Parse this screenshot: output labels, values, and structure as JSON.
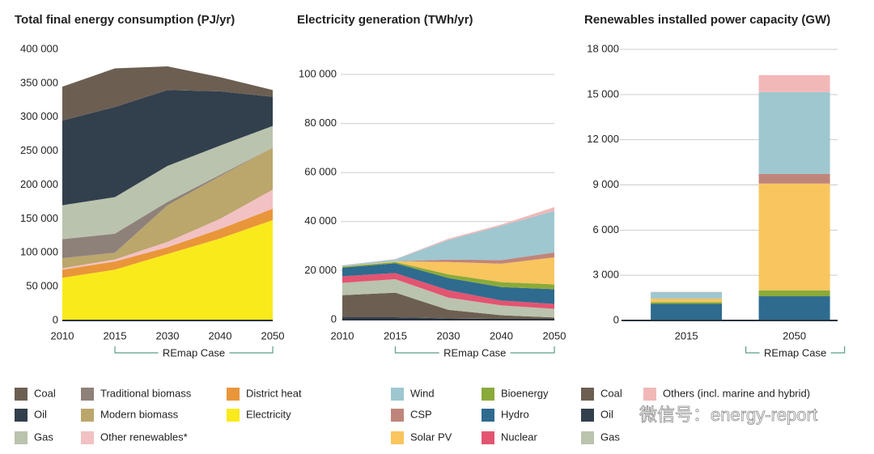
{
  "chart_data": [
    {
      "type": "area",
      "stacked": true,
      "title": "Total final energy consumption (PJ/yr)",
      "categories": [
        "2010",
        "2015",
        "2030",
        "2040",
        "2050"
      ],
      "annotation": "REmap Case",
      "ylim": [
        0,
        400000
      ],
      "yticks": [
        0,
        {
          "value": 50000,
          "label": "50 000"
        },
        {
          "value": 100000,
          "label": "100 000"
        },
        {
          "value": 150000,
          "label": "150 000"
        },
        {
          "value": 200000,
          "label": "200 000"
        },
        {
          "value": 250000,
          "label": "250 000"
        },
        {
          "value": 300000,
          "label": "300 000"
        },
        {
          "value": 350000,
          "label": "350 000"
        },
        {
          "value": 400000,
          "label": "400 000"
        }
      ],
      "grid": false,
      "series": [
        {
          "name": "Electricity",
          "color": "#f9ea1c",
          "values": [
            63000,
            75000,
            98000,
            121000,
            148000
          ]
        },
        {
          "name": "District heat",
          "color": "#e9963a",
          "values": [
            12000,
            12000,
            10000,
            14000,
            17000
          ]
        },
        {
          "name": "Other renewables*",
          "color": "#f2c1c3",
          "values": [
            2000,
            3000,
            8000,
            15000,
            28000
          ]
        },
        {
          "name": "Modern biomass",
          "color": "#bba66c",
          "values": [
            15000,
            10000,
            54000,
            63000,
            62000
          ]
        },
        {
          "name": "Traditional biomass",
          "color": "#8e817a",
          "values": [
            28000,
            28000,
            5000,
            2000,
            0
          ]
        },
        {
          "name": "Gas",
          "color": "#bac3ad",
          "values": [
            50000,
            54000,
            53000,
            43000,
            32000
          ]
        },
        {
          "name": "Oil",
          "color": "#323f4d",
          "values": [
            125000,
            133000,
            112000,
            80000,
            43000
          ]
        },
        {
          "name": "Coal",
          "color": "#6c5f52",
          "values": [
            50000,
            57000,
            35000,
            21000,
            10000
          ]
        }
      ]
    },
    {
      "type": "area",
      "stacked": true,
      "title": "Electricity generation (TWh/yr)",
      "categories": [
        "2010",
        "2015",
        "2030",
        "2040",
        "2050"
      ],
      "annotation": "REmap Case",
      "ylim": [
        0,
        100000
      ],
      "yticks": [
        0,
        {
          "value": 20000,
          "label": "20 000"
        },
        {
          "value": 40000,
          "label": "40 000"
        },
        {
          "value": 60000,
          "label": "60 000"
        },
        {
          "value": 80000,
          "label": "80 000"
        },
        {
          "value": 100000,
          "label": "100 000"
        }
      ],
      "grid": true,
      "series": [
        {
          "name": "Oil",
          "color": "#323f4d",
          "values": [
            1000,
            1000,
            500,
            300,
            200
          ]
        },
        {
          "name": "Coal",
          "color": "#6c5f52",
          "values": [
            9000,
            10000,
            3500,
            1500,
            700
          ]
        },
        {
          "name": "Gas",
          "color": "#bac3ad",
          "values": [
            5000,
            5500,
            5000,
            4000,
            3500
          ]
        },
        {
          "name": "Nuclear",
          "color": "#e35471",
          "values": [
            2700,
            2500,
            3000,
            2000,
            2000
          ]
        },
        {
          "name": "Hydro",
          "color": "#2e6b8f",
          "values": [
            3500,
            4000,
            5000,
            5500,
            6000
          ]
        },
        {
          "name": "Bioenergy",
          "color": "#8aaa3a",
          "values": [
            400,
            500,
            1500,
            2000,
            2000
          ]
        },
        {
          "name": "Solar PV",
          "color": "#f9c55e",
          "values": [
            100,
            300,
            5000,
            7500,
            11000
          ]
        },
        {
          "name": "CSP",
          "color": "#c0857a",
          "values": [
            0,
            0,
            1000,
            1500,
            2000
          ]
        },
        {
          "name": "Wind",
          "color": "#9ec7d0",
          "values": [
            400,
            800,
            8000,
            14000,
            17000
          ]
        },
        {
          "name": "Others (incl. marine and hybrid)",
          "color": "#f2b8b8",
          "values": [
            100,
            100,
            500,
            500,
            1500
          ]
        }
      ]
    },
    {
      "type": "bar",
      "stacked": true,
      "title": "Renewables installed power capacity (GW)",
      "categories": [
        "2015",
        "2050"
      ],
      "annotation": "REmap Case",
      "ylim": [
        0,
        18000
      ],
      "yticks": [
        0,
        {
          "value": 3000,
          "label": "3 000"
        },
        {
          "value": 6000,
          "label": "6 000"
        },
        {
          "value": 9000,
          "label": "9 000"
        },
        {
          "value": 12000,
          "label": "12 000"
        },
        {
          "value": 15000,
          "label": "15 000"
        },
        {
          "value": 18000,
          "label": "18 000"
        }
      ],
      "grid": true,
      "series": [
        {
          "color": "#2e6b8f",
          "values": [
            1100,
            1610
          ]
        },
        {
          "color": "#8aaa3a",
          "values": [
            120,
            380
          ]
        },
        {
          "color": "#f9c55e",
          "values": [
            230,
            7100
          ]
        },
        {
          "color": "#c0857a",
          "values": [
            5,
            640
          ]
        },
        {
          "color": "#9ec7d0",
          "values": [
            430,
            5430
          ]
        },
        {
          "color": "#f2b8b8",
          "values": [
            20,
            1130
          ]
        }
      ]
    }
  ],
  "watermark": "微信号：energy-report"
}
